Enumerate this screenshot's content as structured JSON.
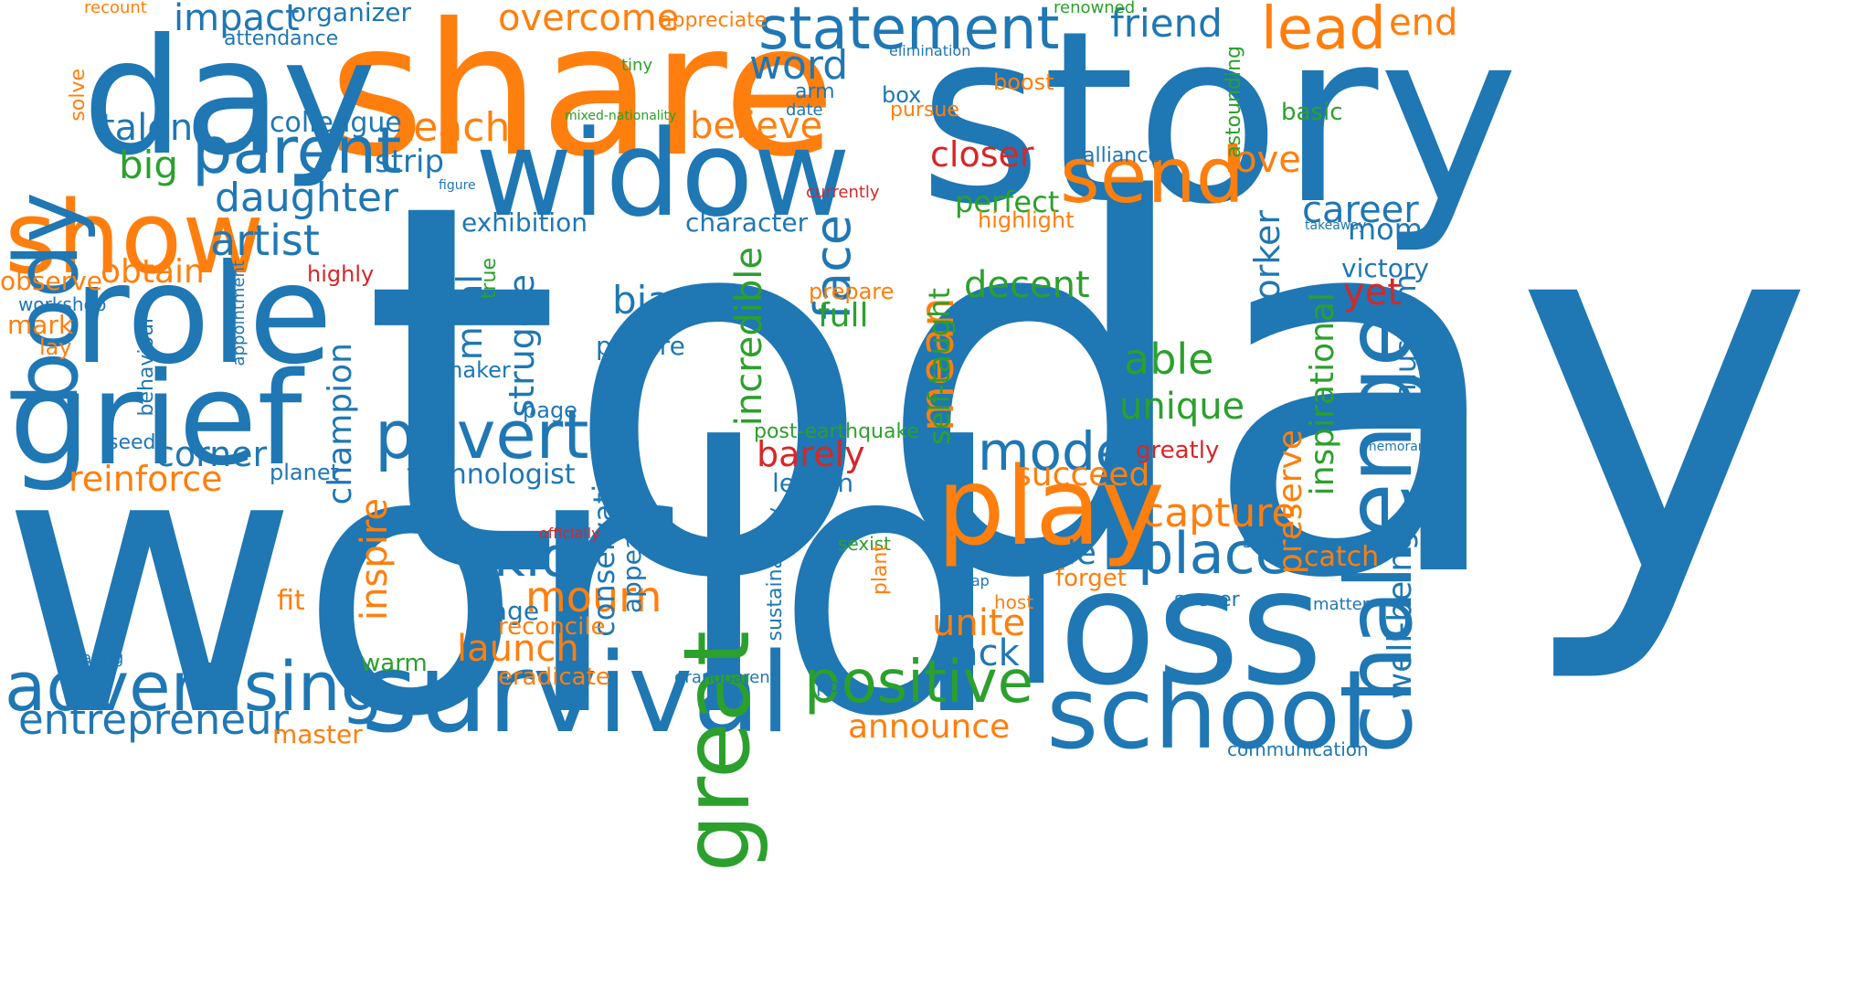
{
  "colors": {
    "blue": "#1f77b4",
    "orange": "#ff7f0e",
    "green": "#2ca02c",
    "red": "#d62728"
  },
  "words": [
    {
      "text": "today",
      "color": "blue"
    },
    {
      "text": "world",
      "color": "blue"
    },
    {
      "text": "story",
      "color": "blue"
    },
    {
      "text": "share",
      "color": "orange"
    },
    {
      "text": "day",
      "color": "blue"
    },
    {
      "text": "widow",
      "color": "blue"
    },
    {
      "text": "role",
      "color": "blue"
    },
    {
      "text": "grief",
      "color": "blue"
    },
    {
      "text": "show",
      "color": "orange"
    },
    {
      "text": "body",
      "color": "blue"
    },
    {
      "text": "loss",
      "color": "blue"
    },
    {
      "text": "survival",
      "color": "blue"
    },
    {
      "text": "school",
      "color": "blue"
    },
    {
      "text": "challenge",
      "color": "blue"
    },
    {
      "text": "great",
      "color": "green"
    },
    {
      "text": "play",
      "color": "orange"
    },
    {
      "text": "statement",
      "color": "blue"
    },
    {
      "text": "parent",
      "color": "blue"
    },
    {
      "text": "poverty",
      "color": "blue"
    },
    {
      "text": "advertising",
      "color": "blue"
    },
    {
      "text": "positive",
      "color": "green"
    },
    {
      "text": "send",
      "color": "orange"
    },
    {
      "text": "lead",
      "color": "orange"
    },
    {
      "text": "model",
      "color": "blue"
    },
    {
      "text": "place",
      "color": "blue"
    },
    {
      "text": "kid",
      "color": "blue"
    },
    {
      "text": "face",
      "color": "blue"
    },
    {
      "text": "mean",
      "color": "orange"
    },
    {
      "text": "entrepreneur",
      "color": "blue"
    },
    {
      "text": "daughter",
      "color": "blue"
    },
    {
      "text": "overcome",
      "color": "orange"
    },
    {
      "text": "impact",
      "color": "blue"
    },
    {
      "text": "friend",
      "color": "blue"
    },
    {
      "text": "artist",
      "color": "blue"
    },
    {
      "text": "mourn",
      "color": "orange"
    },
    {
      "text": "unite",
      "color": "orange"
    },
    {
      "text": "lack",
      "color": "blue"
    },
    {
      "text": "launch",
      "color": "orange"
    },
    {
      "text": "capture",
      "color": "orange"
    },
    {
      "text": "able",
      "color": "green"
    },
    {
      "text": "unique",
      "color": "green"
    },
    {
      "text": "example",
      "color": "blue"
    },
    {
      "text": "succeed",
      "color": "orange"
    },
    {
      "text": "corner",
      "color": "blue"
    },
    {
      "text": "reinforce",
      "color": "orange"
    },
    {
      "text": "barely",
      "color": "red"
    },
    {
      "text": "decent",
      "color": "green"
    },
    {
      "text": "bias",
      "color": "blue"
    },
    {
      "text": "full",
      "color": "green"
    },
    {
      "text": "teach",
      "color": "orange"
    },
    {
      "text": "believe",
      "color": "orange"
    },
    {
      "text": "talent",
      "color": "blue"
    },
    {
      "text": "big",
      "color": "green"
    },
    {
      "text": "word",
      "color": "blue"
    },
    {
      "text": "closer",
      "color": "red"
    },
    {
      "text": "love",
      "color": "orange"
    },
    {
      "text": "career",
      "color": "blue"
    },
    {
      "text": "end",
      "color": "orange"
    },
    {
      "text": "obtain",
      "color": "orange"
    },
    {
      "text": "strip",
      "color": "blue"
    },
    {
      "text": "colleague",
      "color": "blue"
    },
    {
      "text": "organizer",
      "color": "blue"
    },
    {
      "text": "announce",
      "color": "orange"
    },
    {
      "text": "master",
      "color": "orange"
    },
    {
      "text": "yet",
      "color": "red"
    },
    {
      "text": "mom",
      "color": "blue"
    },
    {
      "text": "victory",
      "color": "blue"
    },
    {
      "text": "technologist",
      "color": "blue"
    },
    {
      "text": "perfect",
      "color": "green"
    },
    {
      "text": "exhibition",
      "color": "blue"
    },
    {
      "text": "character",
      "color": "blue"
    },
    {
      "text": "struggle",
      "color": "blue"
    },
    {
      "text": "meal",
      "color": "blue"
    },
    {
      "text": "champion",
      "color": "blue"
    },
    {
      "text": "inspire",
      "color": "orange"
    },
    {
      "text": "incredible",
      "color": "green"
    },
    {
      "text": "self-taught",
      "color": "green"
    },
    {
      "text": "worker",
      "color": "blue"
    },
    {
      "text": "inspirational",
      "color": "green"
    },
    {
      "text": "preserve",
      "color": "orange"
    },
    {
      "text": "well-being",
      "color": "blue"
    },
    {
      "text": "museum",
      "color": "blue"
    },
    {
      "text": "mitigation",
      "color": "blue"
    },
    {
      "text": "conservation",
      "color": "blue"
    },
    {
      "text": "appearance",
      "color": "blue"
    },
    {
      "text": "catch",
      "color": "orange"
    },
    {
      "text": "forget",
      "color": "orange"
    },
    {
      "text": "wage",
      "color": "blue"
    },
    {
      "text": "reconcile",
      "color": "orange"
    },
    {
      "text": "eradicate",
      "color": "orange"
    },
    {
      "text": "lesson",
      "color": "blue"
    },
    {
      "text": "picture",
      "color": "blue"
    },
    {
      "text": "maker",
      "color": "blue"
    },
    {
      "text": "page",
      "color": "blue"
    },
    {
      "text": "planet",
      "color": "blue"
    },
    {
      "text": "seed",
      "color": "blue"
    },
    {
      "text": "fit",
      "color": "orange"
    },
    {
      "text": "warm",
      "color": "green"
    },
    {
      "text": "rating",
      "color": "blue"
    },
    {
      "text": "mark",
      "color": "orange"
    },
    {
      "text": "lay",
      "color": "orange"
    },
    {
      "text": "observe",
      "color": "orange"
    },
    {
      "text": "workshop",
      "color": "blue"
    },
    {
      "text": "highly",
      "color": "red"
    },
    {
      "text": "true",
      "color": "green"
    },
    {
      "text": "behaviour",
      "color": "blue"
    },
    {
      "text": "appointment",
      "color": "blue"
    },
    {
      "text": "attendance",
      "color": "blue"
    },
    {
      "text": "recount",
      "color": "orange"
    },
    {
      "text": "appreciate",
      "color": "orange"
    },
    {
      "text": "tiny",
      "color": "green"
    },
    {
      "text": "mixed-nationality",
      "color": "green"
    },
    {
      "text": "solve",
      "color": "orange"
    },
    {
      "text": "figure",
      "color": "blue"
    },
    {
      "text": "arm",
      "color": "blue"
    },
    {
      "text": "date",
      "color": "blue"
    },
    {
      "text": "box",
      "color": "blue"
    },
    {
      "text": "pursue",
      "color": "orange"
    },
    {
      "text": "boost",
      "color": "orange"
    },
    {
      "text": "basic",
      "color": "green"
    },
    {
      "text": "astounding",
      "color": "green"
    },
    {
      "text": "alliance",
      "color": "blue"
    },
    {
      "text": "renowned",
      "color": "green"
    },
    {
      "text": "elimination",
      "color": "blue"
    },
    {
      "text": "currently",
      "color": "red"
    },
    {
      "text": "highlight",
      "color": "orange"
    },
    {
      "text": "prepare",
      "color": "orange"
    },
    {
      "text": "takeaway",
      "color": "blue"
    },
    {
      "text": "post-earthquake",
      "color": "green"
    },
    {
      "text": "greatly",
      "color": "red"
    },
    {
      "text": "memorandum",
      "color": "blue"
    },
    {
      "text": "officially",
      "color": "red"
    },
    {
      "text": "sustainability",
      "color": "blue"
    },
    {
      "text": "sexist",
      "color": "green"
    },
    {
      "text": "plant",
      "color": "orange"
    },
    {
      "text": "recap",
      "color": "blue"
    },
    {
      "text": "host",
      "color": "orange"
    },
    {
      "text": "suffrage",
      "color": "blue"
    },
    {
      "text": "soccer",
      "color": "blue"
    },
    {
      "text": "matter",
      "color": "blue"
    },
    {
      "text": "grandparent",
      "color": "blue"
    },
    {
      "text": "ppl",
      "color": "blue"
    },
    {
      "text": "communication",
      "color": "blue"
    }
  ]
}
